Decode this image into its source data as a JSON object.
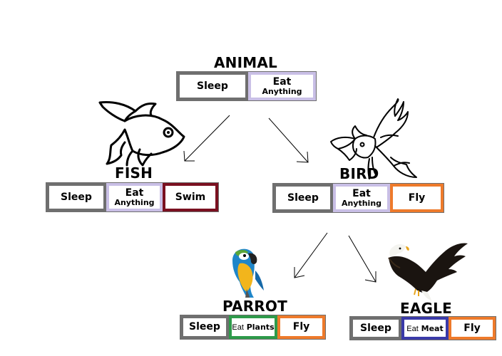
{
  "colors": {
    "sleep_border": "#6f6f6f",
    "eat_anything_border": "#c9bfe6",
    "swim_border": "#7a1020",
    "fly_border": "#ee7a2b",
    "eat_plants_border": "#2e9a4a",
    "eat_meat_border": "#3a3aa8"
  },
  "nodes": {
    "animal": {
      "title": "ANIMAL",
      "cells": [
        {
          "main": "Sleep",
          "sub": "",
          "border": "sleep"
        },
        {
          "main": "Eat",
          "sub": "Anything",
          "border": "eat_anything"
        }
      ]
    },
    "fish": {
      "title": "FISH",
      "icon": "fish-icon",
      "cells": [
        {
          "main": "Sleep",
          "sub": "",
          "border": "sleep"
        },
        {
          "main": "Eat",
          "sub": "Anything",
          "border": "eat_anything"
        },
        {
          "main": "Swim",
          "sub": "",
          "border": "swim"
        }
      ]
    },
    "bird": {
      "title": "BIRD",
      "icon": "bird-icon",
      "cells": [
        {
          "main": "Sleep",
          "sub": "",
          "border": "sleep"
        },
        {
          "main": "Eat",
          "sub": "Anything",
          "border": "eat_anything"
        },
        {
          "main": "Fly",
          "sub": "",
          "border": "fly"
        }
      ]
    },
    "parrot": {
      "title": "PARROT",
      "icon": "parrot-icon",
      "cells": [
        {
          "main": "Sleep",
          "border": "sleep"
        },
        {
          "eat_prefix": "Eat",
          "eat_word": "Plants",
          "border": "eat_plants"
        },
        {
          "main": "Fly",
          "border": "fly"
        }
      ]
    },
    "eagle": {
      "title": "EAGLE",
      "icon": "eagle-icon",
      "cells": [
        {
          "main": "Sleep",
          "border": "sleep"
        },
        {
          "eat_prefix": "Eat",
          "eat_word": "Meat",
          "border": "eat_meat"
        },
        {
          "main": "Fly",
          "border": "fly"
        }
      ]
    }
  }
}
